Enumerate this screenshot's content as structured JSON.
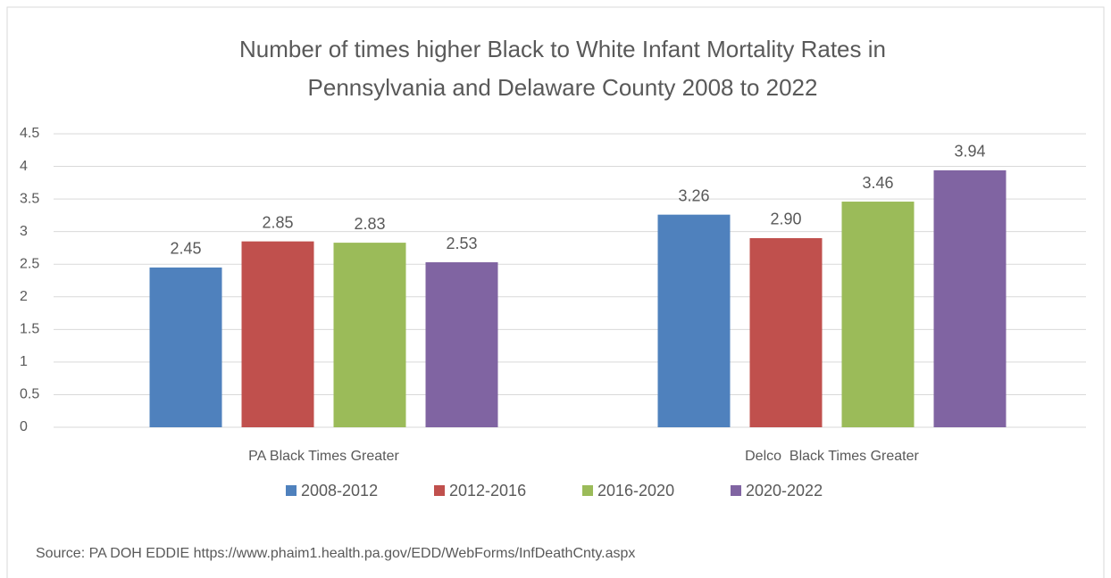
{
  "chart_data": {
    "type": "bar",
    "title": [
      "Number of times higher Black to White Infant Mortality Rates in",
      "Pennsylvania and Delaware County 2008 to 2022"
    ],
    "categories": [
      "PA Black Times Greater",
      "Delco  Black Times Greater"
    ],
    "series": [
      {
        "name": "2008-2012",
        "color": "#4f81bd",
        "values": [
          2.45,
          3.26
        ],
        "value_labels": [
          "2.45",
          "3.26"
        ]
      },
      {
        "name": "2012-2016",
        "color": "#c0504d",
        "values": [
          2.85,
          2.9
        ],
        "value_labels": [
          "2.85",
          "2.90"
        ]
      },
      {
        "name": "2016-2020",
        "color": "#9bbb59",
        "values": [
          2.83,
          3.46
        ],
        "value_labels": [
          "2.83",
          "3.46"
        ]
      },
      {
        "name": "2020-2022",
        "color": "#8064a2",
        "values": [
          2.53,
          3.94
        ],
        "value_labels": [
          "2.53",
          "3.94"
        ]
      }
    ],
    "ylim": [
      0,
      4.5
    ],
    "yticks": [
      0,
      0.5,
      1,
      1.5,
      2,
      2.5,
      3,
      3.5,
      4,
      4.5
    ],
    "grid": true,
    "legend": "bottom",
    "source": "Source: PA DOH EDDIE https://www.phaim1.health.pa.gov/EDD/WebForms/InfDeathCnty.aspx"
  }
}
